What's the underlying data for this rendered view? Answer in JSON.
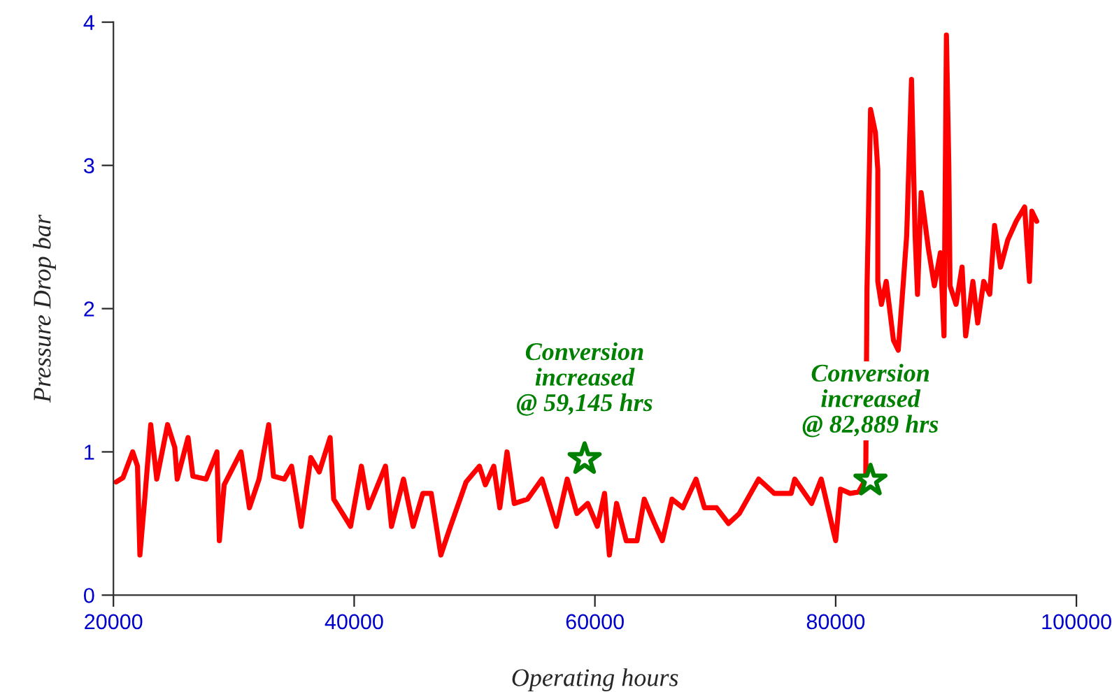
{
  "chart_data": {
    "type": "line",
    "xlabel": "Operating hours",
    "ylabel": "Pressure Drop bar",
    "xlim": [
      20000,
      100000
    ],
    "ylim": [
      0,
      4
    ],
    "xticks": [
      20000,
      40000,
      60000,
      80000,
      100000
    ],
    "yticks": [
      0,
      1,
      2,
      3,
      4
    ],
    "grid": false,
    "legend": false,
    "series": [
      {
        "color": "#ff0000",
        "line_style": "solid",
        "marker": "none",
        "x": [
          20230,
          20800,
          21600,
          22000,
          22200,
          22600,
          23100,
          23600,
          24500,
          25100,
          25300,
          26200,
          26600,
          27700,
          28600,
          28800,
          29200,
          30600,
          31300,
          32100,
          32900,
          33300,
          34200,
          34800,
          35600,
          36400,
          37100,
          38000,
          38300,
          39700,
          40600,
          41200,
          42600,
          43100,
          44100,
          44900,
          45700,
          46400,
          47200,
          48000,
          49300,
          50400,
          50900,
          51600,
          52100,
          52700,
          53300,
          54400,
          55600,
          56800,
          57700,
          58500,
          59400,
          60200,
          60800,
          61200,
          61800,
          62600,
          63500,
          64100,
          64900,
          65600,
          66400,
          67300,
          68400,
          69100,
          70100,
          71100,
          72000,
          73600,
          74900,
          76300,
          76600,
          78000,
          78800,
          79800,
          80000,
          80400,
          81200,
          81900,
          82500,
          82600,
          82800,
          82900,
          83300,
          83500,
          83500,
          83800,
          84200,
          84800,
          85200,
          85600,
          85900,
          86300,
          86600,
          86800,
          87100,
          87700,
          88200,
          88700,
          89000,
          89200,
          89400,
          89500,
          90000,
          90500,
          90800,
          91400,
          91800,
          92300,
          92800,
          93200,
          93700,
          94300,
          95000,
          95700,
          96100,
          96300,
          96700
        ],
        "values": [
          0.79,
          0.82,
          1.0,
          0.9,
          0.28,
          0.67,
          1.19,
          0.81,
          1.19,
          1.03,
          0.81,
          1.1,
          0.83,
          0.81,
          1.0,
          0.38,
          0.77,
          1.0,
          0.61,
          0.81,
          1.19,
          0.83,
          0.81,
          0.9,
          0.48,
          0.96,
          0.86,
          1.1,
          0.67,
          0.48,
          0.9,
          0.61,
          0.9,
          0.48,
          0.81,
          0.48,
          0.71,
          0.71,
          0.28,
          0.48,
          0.79,
          0.9,
          0.77,
          0.9,
          0.61,
          1.0,
          0.64,
          0.67,
          0.81,
          0.48,
          0.81,
          0.57,
          0.64,
          0.48,
          0.71,
          0.28,
          0.64,
          0.38,
          0.38,
          0.67,
          0.51,
          0.38,
          0.67,
          0.61,
          0.81,
          0.61,
          0.61,
          0.5,
          0.57,
          0.81,
          0.71,
          0.71,
          0.81,
          0.64,
          0.81,
          0.45,
          0.38,
          0.74,
          0.71,
          0.72,
          0.81,
          2.13,
          2.97,
          3.39,
          3.23,
          2.97,
          2.19,
          2.03,
          2.19,
          1.78,
          1.71,
          2.16,
          2.51,
          3.6,
          2.51,
          2.1,
          2.81,
          2.42,
          2.16,
          2.39,
          1.81,
          3.91,
          3.0,
          2.16,
          2.03,
          2.29,
          1.81,
          2.19,
          1.9,
          2.19,
          2.1,
          2.58,
          2.29,
          2.48,
          2.61,
          2.71,
          2.19,
          2.68,
          2.61
        ]
      },
      {
        "type": "scatter",
        "color": "#008000",
        "marker": "star",
        "x": [
          59145,
          82889
        ],
        "values": [
          0.95,
          0.8
        ]
      }
    ],
    "annotations": [
      {
        "text": "Conversion\nincreased\n@ 59,145 hrs",
        "x": 59145,
        "y": 0.95
      },
      {
        "text": "Conversion\nincreased\n@ 82,889 hrs",
        "x": 82889,
        "y": 0.8
      }
    ]
  }
}
